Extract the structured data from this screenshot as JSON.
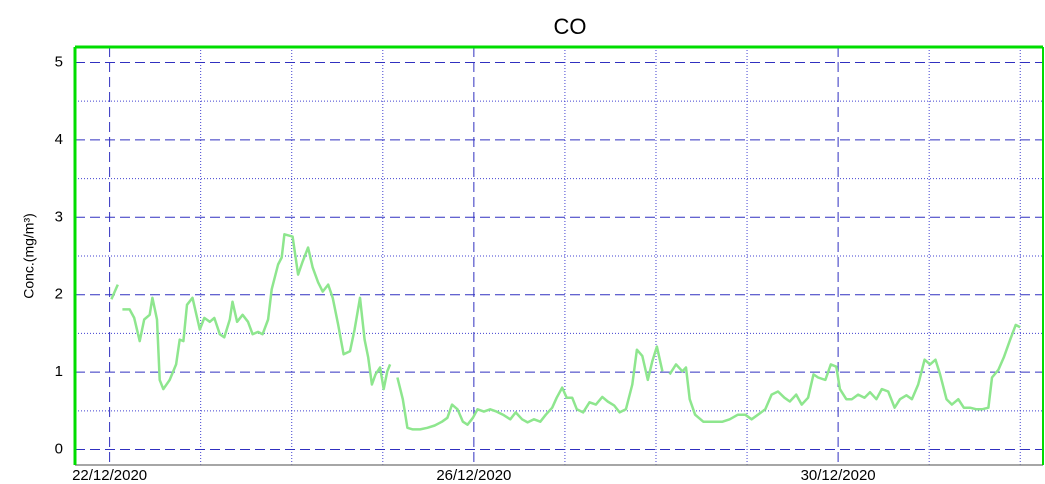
{
  "chart_data": {
    "type": "line",
    "title": "CO",
    "y_label": "Conc.(mg/m³)",
    "xlim": [
      -0.38,
      10.25
    ],
    "ylim": [
      -0.2,
      5.2
    ],
    "xticks": [
      {
        "value": 0,
        "label": "22/12/2020"
      },
      {
        "value": 4,
        "label": "26/12/2020"
      },
      {
        "value": 8,
        "label": "30/12/2020"
      }
    ],
    "xgrid_minor": [
      1,
      2,
      3,
      5,
      6,
      7,
      9,
      10
    ],
    "yticks": [
      0,
      1,
      2,
      3,
      4,
      5
    ],
    "ygrid_minor": [
      0.5,
      1.5,
      2.5,
      3.5,
      4.5
    ],
    "grid": true,
    "x": [
      0.02,
      0.09,
      0.12,
      0.14,
      0.22,
      0.27,
      0.33,
      0.38,
      0.44,
      0.47,
      0.52,
      0.55,
      0.59,
      0.66,
      0.73,
      0.77,
      0.81,
      0.85,
      0.91,
      0.99,
      1.04,
      1.1,
      1.15,
      1.21,
      1.26,
      1.32,
      1.35,
      1.4,
      1.46,
      1.52,
      1.57,
      1.63,
      1.68,
      1.74,
      1.78,
      1.85,
      1.89,
      1.92,
      2.01,
      2.07,
      2.12,
      2.18,
      2.23,
      2.29,
      2.34,
      2.4,
      2.45,
      2.51,
      2.57,
      2.64,
      2.69,
      2.75,
      2.8,
      2.84,
      2.88,
      2.92,
      2.97,
      3.01,
      3.05,
      3.08,
      3.12,
      3.16,
      3.22,
      3.27,
      3.33,
      3.41,
      3.49,
      3.57,
      3.65,
      3.71,
      3.76,
      3.82,
      3.88,
      3.93,
      3.99,
      4.04,
      4.11,
      4.18,
      4.25,
      4.32,
      4.4,
      4.46,
      4.53,
      4.59,
      4.66,
      4.73,
      4.79,
      4.86,
      4.91,
      4.97,
      5.02,
      5.08,
      5.13,
      5.2,
      5.27,
      5.34,
      5.41,
      5.47,
      5.54,
      5.6,
      5.67,
      5.74,
      5.79,
      5.85,
      5.91,
      5.96,
      6.01,
      6.07,
      6.11,
      6.15,
      6.22,
      6.29,
      6.33,
      6.37,
      6.43,
      6.52,
      6.62,
      6.73,
      6.81,
      6.9,
      6.98,
      7.05,
      7.12,
      7.2,
      7.27,
      7.34,
      7.41,
      7.47,
      7.54,
      7.6,
      7.67,
      7.73,
      7.78,
      7.86,
      7.92,
      7.98,
      8.02,
      8.09,
      8.15,
      8.22,
      8.29,
      8.35,
      8.42,
      8.48,
      8.55,
      8.62,
      8.68,
      8.75,
      8.81,
      8.88,
      8.95,
      9.01,
      9.07,
      9.12,
      9.19,
      9.25,
      9.32,
      9.38,
      9.45,
      9.52,
      9.58,
      9.65,
      9.69,
      9.76,
      9.82,
      9.89,
      9.95,
      10.0
    ],
    "series": [
      {
        "color": "#8ee68e",
        "values": [
          1.94,
          2.13,
          null,
          1.81,
          1.81,
          1.7,
          1.4,
          1.68,
          1.74,
          1.96,
          1.68,
          0.9,
          0.78,
          0.9,
          1.1,
          1.42,
          1.4,
          1.87,
          1.96,
          1.55,
          1.7,
          1.65,
          1.7,
          1.49,
          1.45,
          1.68,
          1.91,
          1.65,
          1.74,
          1.65,
          1.49,
          1.52,
          1.49,
          1.68,
          2.07,
          2.39,
          2.48,
          2.78,
          2.75,
          2.26,
          2.43,
          2.61,
          2.35,
          2.16,
          2.04,
          2.13,
          1.96,
          1.61,
          1.23,
          1.27,
          1.55,
          1.96,
          1.42,
          1.19,
          0.84,
          0.97,
          1.06,
          0.78,
          1.01,
          1.1,
          null,
          0.93,
          0.65,
          0.28,
          0.26,
          0.26,
          0.28,
          0.31,
          0.36,
          0.41,
          0.58,
          0.52,
          0.36,
          0.32,
          0.41,
          0.52,
          0.49,
          0.52,
          0.49,
          0.45,
          0.39,
          0.48,
          0.39,
          0.35,
          0.39,
          0.36,
          0.45,
          0.54,
          0.67,
          0.8,
          0.67,
          0.67,
          0.52,
          0.48,
          0.61,
          0.58,
          0.68,
          0.62,
          0.57,
          0.48,
          0.52,
          0.84,
          1.29,
          1.21,
          0.9,
          1.14,
          1.33,
          1.01,
          null,
          0.97,
          1.1,
          1.01,
          1.06,
          0.65,
          0.45,
          0.36,
          0.36,
          0.36,
          0.39,
          0.45,
          0.45,
          0.39,
          0.45,
          0.52,
          0.71,
          0.75,
          0.67,
          0.62,
          0.71,
          0.58,
          0.67,
          0.97,
          0.93,
          0.9,
          1.1,
          1.07,
          0.78,
          0.65,
          0.65,
          0.71,
          0.67,
          0.74,
          0.65,
          0.78,
          0.75,
          0.54,
          0.65,
          0.7,
          0.65,
          0.84,
          1.16,
          1.1,
          1.16,
          0.97,
          0.65,
          0.58,
          0.65,
          0.54,
          0.54,
          0.52,
          0.52,
          0.54,
          0.93,
          1.03,
          1.19,
          1.42,
          1.61,
          1.58
        ]
      }
    ]
  }
}
